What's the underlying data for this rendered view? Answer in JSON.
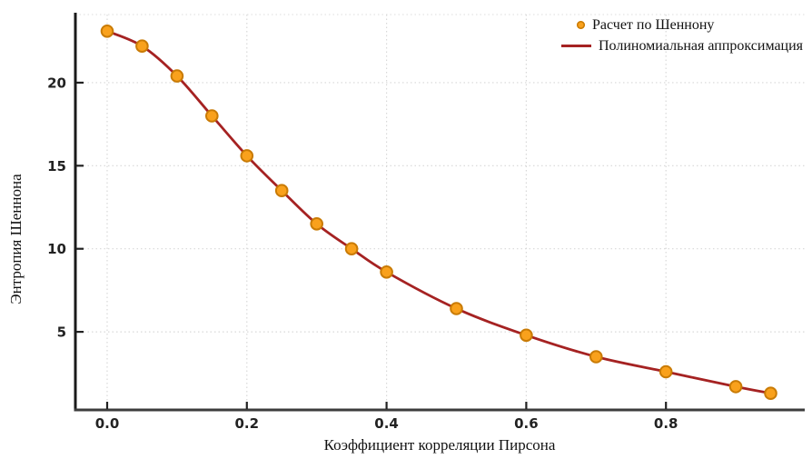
{
  "chart_data": {
    "type": "line",
    "title": "",
    "xlabel": "Коэффициент корреляции Пирсона",
    "ylabel": "Энтропия Шеннона",
    "x": [
      0.0,
      0.05,
      0.1,
      0.15,
      0.2,
      0.25,
      0.3,
      0.35,
      0.4,
      0.5,
      0.6,
      0.7,
      0.8,
      0.9,
      0.95
    ],
    "series": [
      {
        "name": "Расчет по Шеннону",
        "type": "scatter",
        "marker_fill": "#F9A11C",
        "marker_stroke": "#C97B05",
        "values": [
          23.1,
          22.2,
          20.4,
          18.0,
          15.6,
          13.5,
          11.5,
          10.0,
          8.6,
          6.4,
          4.8,
          3.5,
          2.6,
          1.7,
          1.3
        ]
      },
      {
        "name": "Полиномиальная аппроксимация",
        "type": "line",
        "color": "#A52222",
        "values": [
          23.1,
          22.2,
          20.4,
          18.0,
          15.6,
          13.5,
          11.5,
          10.0,
          8.6,
          6.4,
          4.8,
          3.5,
          2.6,
          1.7,
          1.3
        ]
      }
    ],
    "x_ticks": [
      0.0,
      0.2,
      0.4,
      0.6,
      0.8
    ],
    "x_tick_labels": [
      "0.0",
      "0.2",
      "0.4",
      "0.6",
      "0.8"
    ],
    "y_ticks": [
      5,
      10,
      15,
      20
    ],
    "y_tick_labels": [
      "5",
      "10",
      "15",
      "20"
    ],
    "xlim": [
      -0.0455,
      0.9987
    ],
    "ylim": [
      0.3,
      24.1
    ],
    "grid": "dotted",
    "grid_color": "#D8D8D8",
    "axis_color": "#1A1A1A",
    "bottom_axis_color": "#3C3C3C",
    "legend_position": "top-right"
  }
}
